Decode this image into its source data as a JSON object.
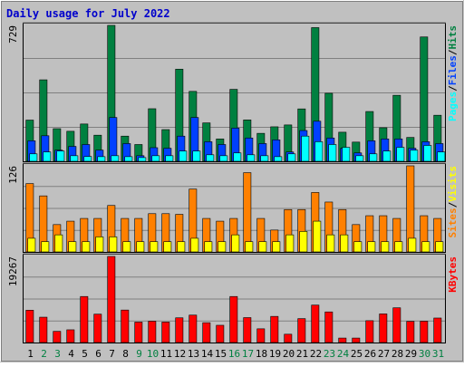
{
  "chart_data": {
    "type": "bar",
    "title": "Daily usage for July 2022",
    "colors": {
      "background": "#c0c0c0",
      "frame": "#ffffff",
      "title": "#0000cc",
      "hits": "#008040",
      "files": "#0040ff",
      "pages": "#00ffff",
      "visits": "#ff8000",
      "sites": "#ffff00",
      "kbytes": "#ff0000",
      "weekend_label": "#008040"
    },
    "days": [
      "1",
      "2",
      "3",
      "4",
      "5",
      "6",
      "7",
      "8",
      "9",
      "10",
      "11",
      "12",
      "13",
      "14",
      "15",
      "16",
      "17",
      "18",
      "19",
      "20",
      "21",
      "22",
      "23",
      "24",
      "25",
      "26",
      "27",
      "28",
      "29",
      "30",
      "31"
    ],
    "weekend_days": [
      "2",
      "3",
      "9",
      "10",
      "16",
      "17",
      "23",
      "24",
      "30",
      "31"
    ],
    "panels": [
      {
        "id": "hits-panel",
        "max_label": "729",
        "ymax": 729,
        "legend": [
          {
            "text": "Pages",
            "color": "#00ffff"
          },
          {
            "text": "/",
            "color": "#000000"
          },
          {
            "text": "Files",
            "color": "#0040ff"
          },
          {
            "text": "/",
            "color": "#000000"
          },
          {
            "text": "Hits",
            "color": "#008040"
          }
        ],
        "series": [
          {
            "name": "Hits",
            "color": "#008040",
            "values": [
              221,
              437,
              175,
              161,
              200,
              140,
              729,
              135,
              90,
              282,
              170,
              494,
              375,
              206,
              120,
              386,
              222,
              150,
              185,
              195,
              281,
              717,
              365,
              156,
              103,
              267,
              180,
              354,
              128,
              667,
              247
            ]
          },
          {
            "name": "Files",
            "color": "#0040ff",
            "values": [
              110,
              137,
              60,
              80,
              90,
              60,
              235,
              95,
              30,
              73,
              70,
              135,
              235,
              105,
              90,
              178,
              125,
              95,
              115,
              50,
              165,
              215,
              125,
              70,
              45,
              110,
              120,
              120,
              70,
              105,
              95
            ]
          },
          {
            "name": "Pages",
            "color": "#00ffff",
            "values": [
              40,
              50,
              55,
              30,
              26,
              25,
              30,
              25,
              20,
              30,
              30,
              55,
              55,
              35,
              30,
              45,
              35,
              30,
              25,
              40,
              135,
              105,
              90,
              75,
              30,
              40,
              55,
              75,
              60,
              85,
              50
            ]
          }
        ]
      },
      {
        "id": "visits-panel",
        "max_label": "126",
        "ymax": 126,
        "legend": [
          {
            "text": "Sites",
            "color": "#ff8000"
          },
          {
            "text": "/",
            "color": "#000000"
          },
          {
            "text": "Visits",
            "color": "#ffff00"
          }
        ],
        "series": [
          {
            "name": "Visits",
            "color": "#ff8000",
            "values": [
              100,
              82,
              40,
              45,
              49,
              49,
              68,
              49,
              49,
              56,
              56,
              55,
              92,
              49,
              45,
              49,
              116,
              49,
              32,
              62,
              62,
              87,
              73,
              62,
              40,
              53,
              53,
              49,
              126,
              53,
              49
            ]
          },
          {
            "name": "Sites",
            "color": "#ffff00",
            "values": [
              20,
              15,
              25,
              15,
              15,
              22,
              22,
              15,
              15,
              15,
              15,
              15,
              20,
              15,
              15,
              25,
              15,
              15,
              15,
              25,
              30,
              45,
              25,
              25,
              15,
              15,
              15,
              15,
              20,
              15,
              15
            ]
          }
        ]
      },
      {
        "id": "kbytes-panel",
        "max_label": "19267",
        "ymax": 19267,
        "legend": [
          {
            "text": "KBytes",
            "color": "#ff0000"
          }
        ],
        "series": [
          {
            "name": "KBytes",
            "color": "#ff0000",
            "values": [
              7230,
              5670,
              2500,
              2850,
              10300,
              6350,
              19267,
              7270,
              4570,
              4770,
              4580,
              5530,
              6140,
              4440,
              3860,
              10300,
              5580,
              3070,
              5850,
              1860,
              5350,
              8380,
              6850,
              1000,
              1000,
              4890,
              6410,
              7770,
              4740,
              4770,
              5480
            ]
          }
        ]
      }
    ]
  }
}
